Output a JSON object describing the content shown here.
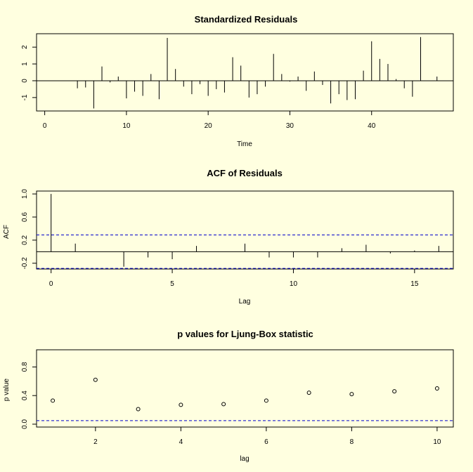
{
  "chart_data": [
    {
      "type": "bar",
      "title": "Standardized Residuals",
      "xlabel": "Time",
      "ylabel": "",
      "xlim": [
        -1,
        50
      ],
      "ylim": [
        -1.8,
        2.8
      ],
      "xticks": [
        0,
        10,
        20,
        30,
        40
      ],
      "yticks": [
        -1,
        0,
        1,
        2
      ],
      "reference_line": 0,
      "x": [
        1,
        2,
        3,
        4,
        5,
        6,
        7,
        8,
        9,
        10,
        11,
        12,
        13,
        14,
        15,
        16,
        17,
        18,
        19,
        20,
        21,
        22,
        23,
        24,
        25,
        26,
        27,
        28,
        29,
        30,
        31,
        32,
        33,
        34,
        35,
        36,
        37,
        38,
        39,
        40,
        41,
        42,
        43,
        44,
        45,
        46,
        47,
        48
      ],
      "values": [
        0,
        0,
        0,
        -0.45,
        -0.4,
        -1.65,
        0.85,
        -0.1,
        0.25,
        -1.05,
        -0.65,
        -0.9,
        0.4,
        -1.1,
        2.55,
        0.7,
        -0.35,
        -0.8,
        -0.2,
        -0.9,
        -0.5,
        -0.7,
        1.4,
        0.9,
        -1.0,
        -0.8,
        -0.35,
        1.6,
        0.4,
        -0.05,
        0.25,
        -0.6,
        0.55,
        -0.25,
        -1.35,
        -0.8,
        -1.15,
        -1.1,
        0.6,
        2.35,
        1.3,
        1.0,
        0.1,
        -0.45,
        -0.95,
        2.6,
        0,
        0.25
      ]
    },
    {
      "type": "bar",
      "title": "ACF of Residuals",
      "xlabel": "Lag",
      "ylabel": "ACF",
      "xlim": [
        -0.6,
        16.6
      ],
      "ylim": [
        -0.3,
        1.05
      ],
      "xticks": [
        0,
        5,
        10,
        15
      ],
      "yticks": [
        -0.2,
        0.2,
        0.6,
        1.0
      ],
      "ytick_labels": [
        "-0.2",
        "0.2",
        "0.6",
        "1.0"
      ],
      "confidence_bounds": [
        0.29,
        -0.29
      ],
      "reference_line": 0,
      "x": [
        0,
        1,
        2,
        3,
        4,
        5,
        6,
        7,
        8,
        9,
        10,
        11,
        12,
        13,
        14,
        15,
        16
      ],
      "values": [
        1.0,
        0.14,
        0,
        -0.26,
        -0.1,
        -0.13,
        0.1,
        0,
        0.14,
        -0.1,
        -0.1,
        -0.1,
        0.06,
        0.12,
        -0.03,
        0.02,
        0.1
      ]
    },
    {
      "type": "scatter",
      "title": "p values for Ljung-Box statistic",
      "xlabel": "lag",
      "ylabel": "p value",
      "xlim": [
        0.62,
        10.38
      ],
      "ylim": [
        -0.04,
        1.04
      ],
      "xticks": [
        2,
        4,
        6,
        8,
        10
      ],
      "yticks": [
        0.0,
        0.4,
        0.8
      ],
      "ytick_labels": [
        "0.0",
        "0.4",
        "0.8"
      ],
      "reference_line": 0.05,
      "x": [
        1,
        2,
        3,
        4,
        5,
        6,
        7,
        8,
        9,
        10
      ],
      "values": [
        0.33,
        0.62,
        0.21,
        0.27,
        0.28,
        0.33,
        0.44,
        0.42,
        0.46,
        0.5
      ]
    }
  ]
}
